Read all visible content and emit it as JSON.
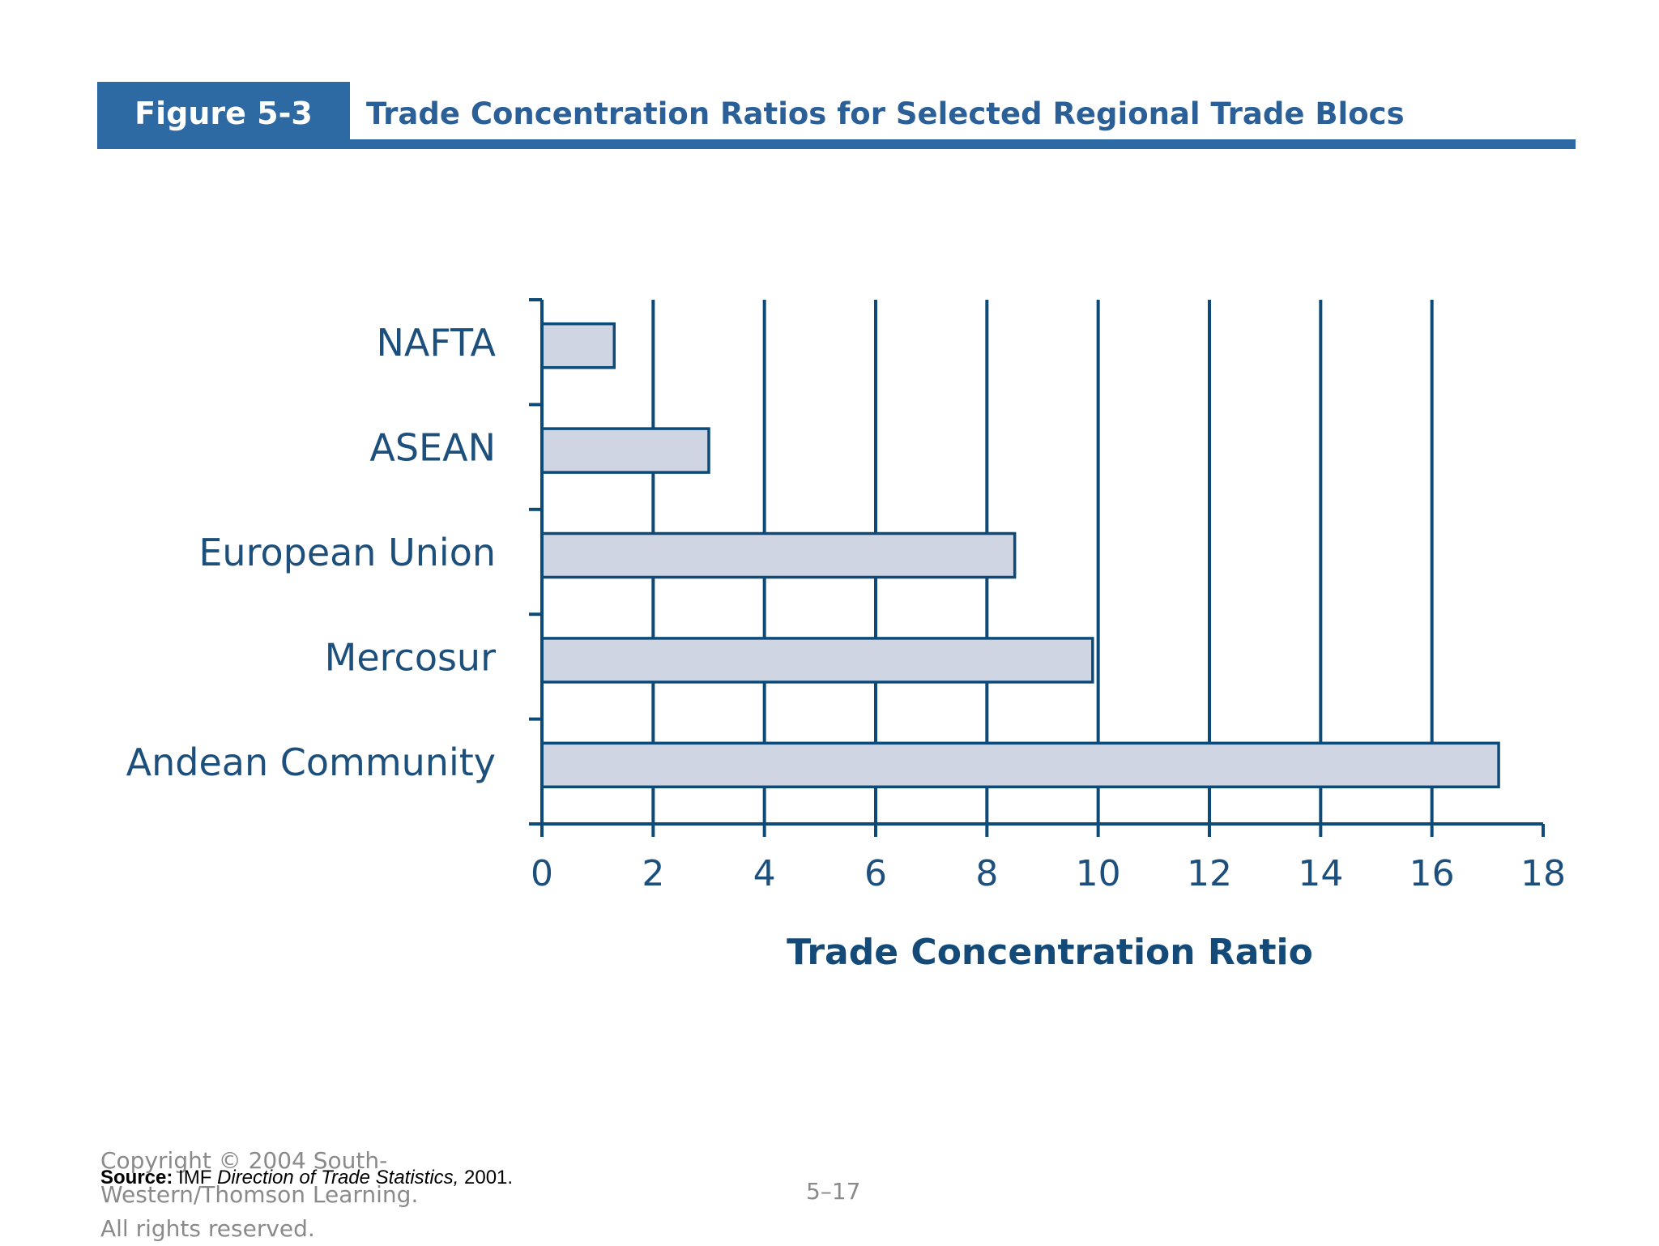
{
  "header": {
    "figure_label": "Figure 5-3",
    "title": "Trade Concentration Ratios for Selected Regional Trade Blocs"
  },
  "colors": {
    "header_blue": "#2d6aa3",
    "title_blue": "#2a5f97",
    "axis_blue": "#0e4a78",
    "bar_fill": "#d0d5e4",
    "bar_stroke": "#0e4a78",
    "footer_gray": "#8a8a8a"
  },
  "chart_data": {
    "type": "bar",
    "orientation": "horizontal",
    "categories": [
      "NAFTA",
      "ASEAN",
      "European Union",
      "Mercosur",
      "Andean Community"
    ],
    "values": [
      1.3,
      3.0,
      8.5,
      9.9,
      17.2
    ],
    "xlabel": "Trade Concentration Ratio",
    "ylabel": "",
    "xlim": [
      0,
      18
    ],
    "xticks": [
      "0",
      "2",
      "4",
      "6",
      "8",
      "10",
      "12",
      "14",
      "16",
      "18"
    ],
    "grid": "vertical"
  },
  "footer": {
    "source_bold": "Source:",
    "source_text": " IMF ",
    "source_italic": "Direction of Trade Statistics,",
    "source_year": " 2001.",
    "copyright_line1": "Copyright © 2004 South-",
    "copyright_line2": "Western/Thomson Learning.",
    "copyright_line3": "All rights reserved.",
    "page_number": "5–17"
  }
}
